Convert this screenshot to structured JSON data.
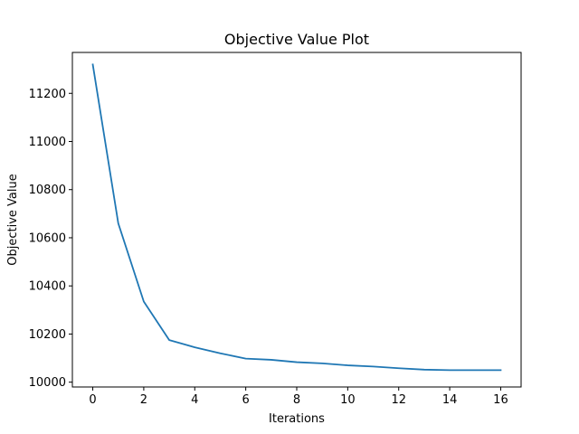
{
  "chart_data": {
    "type": "line",
    "title": "Objective Value Plot",
    "xlabel": "Iterations",
    "ylabel": "Objective Value",
    "xlim": [
      -0.8,
      16.8
    ],
    "ylim": [
      9980,
      11370
    ],
    "xticks": [
      0,
      2,
      4,
      6,
      8,
      10,
      12,
      14,
      16
    ],
    "yticks": [
      10000,
      10200,
      10400,
      10600,
      10800,
      11000,
      11200
    ],
    "grid": false,
    "series": [
      {
        "color": "#1f77b4",
        "x": [
          0,
          1,
          2,
          3,
          4,
          5,
          6,
          7,
          8,
          9,
          10,
          11,
          12,
          13,
          14,
          15,
          16
        ],
        "y": [
          11320,
          10660,
          10335,
          10175,
          10145,
          10120,
          10098,
          10093,
          10083,
          10078,
          10070,
          10065,
          10058,
          10052,
          10050,
          10050,
          10050
        ]
      }
    ]
  }
}
